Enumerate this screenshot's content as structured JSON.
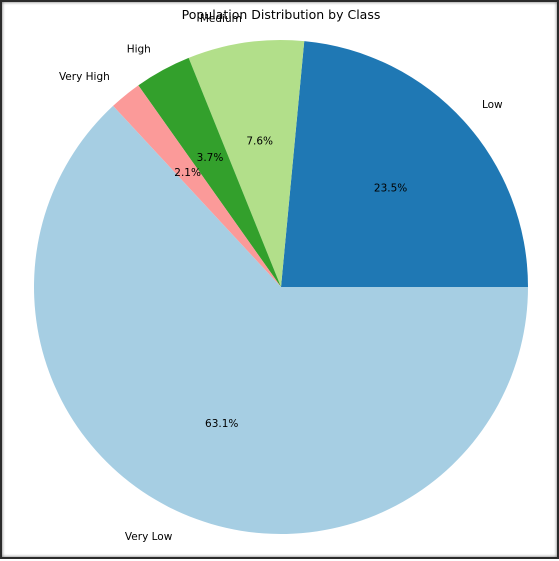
{
  "chart_data": {
    "type": "pie",
    "title": "Population Distribution by Class",
    "categories": [
      "Low",
      "Medium",
      "High",
      "Very High",
      "Very Low"
    ],
    "values": [
      23.5,
      7.6,
      3.7,
      2.1,
      63.1
    ],
    "labels_pct": [
      "23.5%",
      "7.6%",
      "3.7%",
      "2.1%",
      "63.1%"
    ],
    "colors": [
      "#1f78b4",
      "#b2df8a",
      "#33a02c",
      "#fb9a99",
      "#a6cee3"
    ],
    "start_angle_deg": 0,
    "direction": "counterclockwise",
    "legend": "none"
  }
}
